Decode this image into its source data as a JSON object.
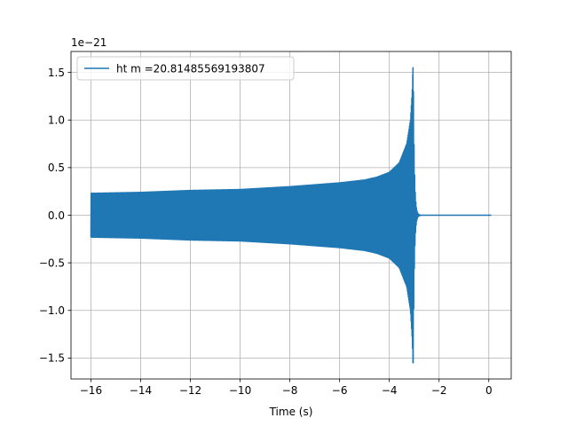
{
  "chart_data": {
    "type": "line",
    "xlabel": "Time (s)",
    "ylabel": "",
    "offset_text": "1e−21",
    "scale": 1e-21,
    "xlim": [
      -16.8,
      0.9
    ],
    "ylim": [
      -1.72,
      1.72
    ],
    "x_ticks": [
      -16,
      -14,
      -12,
      -10,
      -8,
      -6,
      -4,
      -2,
      0
    ],
    "x_tick_labels": [
      "−16",
      "−14",
      "−12",
      "−10",
      "−8",
      "−6",
      "−4",
      "−2",
      "0"
    ],
    "y_ticks": [
      -1.5,
      -1.0,
      -0.5,
      0.0,
      0.5,
      1.0,
      1.5
    ],
    "y_tick_labels": [
      "−1.5",
      "−1.0",
      "−0.5",
      "0.0",
      "0.5",
      "1.0",
      "1.5"
    ],
    "grid": true,
    "legend_position": "top-left",
    "line_color": "#1f77b4",
    "series": [
      {
        "name": "ht m =20.81485569193807",
        "description": "chirp waveform: envelope grows as time approaches merger, then ringdown to zero",
        "x_start": -16.0,
        "x_merger": -3.05,
        "x_end": 0.1,
        "envelope": {
          "x": [
            -16.0,
            -14.0,
            -12.0,
            -10.0,
            -8.0,
            -6.0,
            -5.0,
            -4.5,
            -4.0,
            -3.6,
            -3.3,
            -3.15,
            -3.08,
            -3.05
          ],
          "y": [
            0.23,
            0.24,
            0.26,
            0.27,
            0.3,
            0.34,
            0.37,
            0.4,
            0.45,
            0.55,
            0.75,
            1.0,
            1.3,
            1.55
          ]
        },
        "min_y": -1.55,
        "max_y": 1.55
      }
    ]
  }
}
